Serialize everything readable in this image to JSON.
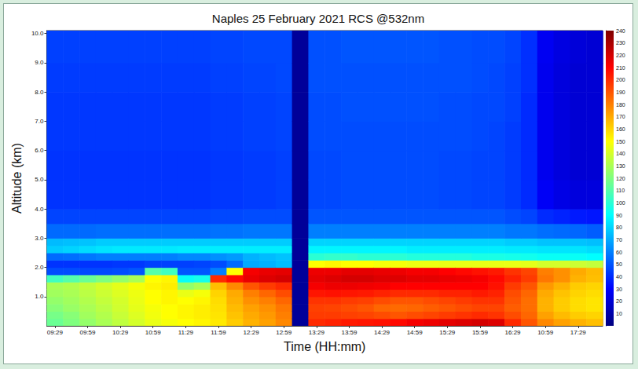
{
  "chart_data": {
    "type": "heatmap",
    "title": "Naples 25 February 2021 RCS @532nm",
    "x_label": "Time (HH:mm)",
    "y_label": "Altitude (km)",
    "x": [
      "09:29",
      null,
      "09:59",
      null,
      "10:29",
      null,
      "10:59",
      null,
      "11:29",
      null,
      "11:59",
      null,
      "12:29",
      null,
      "12:59",
      null,
      "13:29",
      null,
      "13:59",
      null,
      "14:29",
      null,
      "14:59",
      null,
      "15:29",
      null,
      "15:59",
      null,
      "16:29",
      null,
      "10:59",
      null,
      "17:29",
      null
    ],
    "ybins": [
      0,
      0.25,
      0.5,
      0.75,
      1,
      1.25,
      1.5,
      1.75,
      2,
      2.25,
      2.5,
      2.75,
      3,
      3.5,
      4,
      5,
      6,
      7,
      8,
      9,
      10.1
    ],
    "ylim": [
      0,
      10.1
    ],
    "yticks": [
      {
        "value": 1,
        "label": "1.0"
      },
      {
        "value": 2,
        "label": "2.0"
      },
      {
        "value": 3,
        "label": "3.0"
      },
      {
        "value": 4,
        "label": "4.0"
      },
      {
        "value": 5,
        "label": "5.0"
      },
      {
        "value": 6,
        "label": "6.0"
      },
      {
        "value": 7,
        "label": "7.0"
      },
      {
        "value": 8,
        "label": "8.0"
      },
      {
        "value": 9,
        "label": "9.0"
      },
      {
        "value": 10,
        "label": "10.0"
      }
    ],
    "values": [
      [
        115,
        118,
        122,
        125,
        128,
        130,
        105,
        48,
        42,
        55,
        78,
        74,
        55,
        46,
        42,
        42,
        43,
        43,
        44,
        45
      ],
      [
        120,
        122,
        126,
        128,
        130,
        132,
        110,
        48,
        42,
        56,
        80,
        75,
        55,
        46,
        42,
        42,
        43,
        43,
        44,
        45
      ],
      [
        125,
        128,
        130,
        132,
        134,
        136,
        115,
        47,
        42,
        58,
        82,
        76,
        55,
        46,
        42,
        42,
        43,
        43,
        44,
        45
      ],
      [
        130,
        132,
        134,
        136,
        138,
        140,
        120,
        47,
        42,
        60,
        84,
        78,
        56,
        46,
        42,
        42,
        43,
        43,
        44,
        45
      ],
      [
        135,
        137,
        139,
        140,
        142,
        144,
        125,
        48,
        43,
        60,
        85,
        78,
        56,
        46,
        42,
        42,
        43,
        43,
        44,
        45
      ],
      [
        140,
        142,
        144,
        145,
        146,
        148,
        130,
        50,
        43,
        60,
        85,
        78,
        56,
        46,
        42,
        42,
        43,
        43,
        44,
        45
      ],
      [
        145,
        147,
        148,
        150,
        150,
        152,
        150,
        110,
        45,
        60,
        85,
        78,
        56,
        46,
        42,
        42,
        43,
        43,
        44,
        45
      ],
      [
        148,
        150,
        150,
        152,
        152,
        154,
        152,
        105,
        45,
        60,
        85,
        78,
        56,
        46,
        42,
        42,
        43,
        43,
        44,
        45
      ],
      [
        150,
        152,
        152,
        150,
        145,
        125,
        92,
        50,
        45,
        62,
        86,
        78,
        56,
        46,
        42,
        42,
        43,
        43,
        44,
        45
      ],
      [
        152,
        154,
        154,
        152,
        148,
        130,
        95,
        50,
        46,
        62,
        86,
        78,
        56,
        46,
        42,
        42,
        43,
        43,
        44,
        45
      ],
      [
        155,
        156,
        157,
        158,
        160,
        165,
        200,
        60,
        48,
        64,
        86,
        78,
        57,
        47,
        43,
        43,
        44,
        44,
        45,
        46
      ],
      [
        162,
        164,
        166,
        168,
        170,
        178,
        208,
        150,
        55,
        66,
        86,
        78,
        57,
        47,
        43,
        43,
        44,
        44,
        45,
        46
      ],
      [
        168,
        170,
        172,
        176,
        180,
        190,
        215,
        212,
        70,
        72,
        86,
        78,
        58,
        48,
        44,
        44,
        45,
        45,
        46,
        47
      ],
      [
        172,
        174,
        176,
        180,
        186,
        196,
        218,
        215,
        72,
        74,
        86,
        78,
        58,
        48,
        44,
        44,
        45,
        45,
        46,
        47
      ],
      [
        178,
        180,
        182,
        186,
        192,
        200,
        220,
        216,
        75,
        76,
        86,
        78,
        58,
        48,
        45,
        45,
        46,
        46,
        47,
        47
      ],
      [
        6,
        6,
        6,
        6,
        6,
        6,
        6,
        6,
        6,
        6,
        6,
        6,
        6,
        6,
        6,
        6,
        6,
        6,
        6,
        6
      ],
      [
        200,
        196,
        195,
        198,
        205,
        212,
        216,
        214,
        150,
        100,
        88,
        80,
        60,
        50,
        47,
        47,
        48,
        48,
        49,
        49
      ],
      [
        202,
        196,
        194,
        198,
        206,
        214,
        218,
        214,
        152,
        102,
        88,
        80,
        60,
        50,
        47,
        47,
        48,
        48,
        49,
        49
      ],
      [
        204,
        195,
        192,
        196,
        205,
        214,
        220,
        216,
        150,
        102,
        88,
        80,
        60,
        50,
        48,
        48,
        48,
        49,
        49,
        50
      ],
      [
        205,
        194,
        190,
        195,
        204,
        213,
        220,
        216,
        150,
        100,
        88,
        80,
        60,
        50,
        48,
        48,
        48,
        49,
        49,
        50
      ],
      [
        206,
        192,
        186,
        192,
        202,
        212,
        218,
        215,
        148,
        100,
        88,
        80,
        60,
        50,
        48,
        48,
        48,
        49,
        49,
        50
      ],
      [
        208,
        190,
        185,
        190,
        200,
        210,
        218,
        214,
        148,
        100,
        88,
        80,
        60,
        50,
        48,
        48,
        48,
        49,
        49,
        50
      ],
      [
        212,
        192,
        186,
        190,
        200,
        210,
        216,
        212,
        146,
        98,
        86,
        80,
        60,
        50,
        48,
        48,
        48,
        49,
        49,
        50
      ],
      [
        214,
        194,
        188,
        192,
        200,
        210,
        216,
        212,
        146,
        98,
        86,
        80,
        60,
        50,
        48,
        48,
        48,
        49,
        49,
        50
      ],
      [
        216,
        196,
        190,
        194,
        202,
        210,
        215,
        210,
        145,
        98,
        86,
        80,
        60,
        50,
        47,
        47,
        48,
        48,
        49,
        49
      ],
      [
        218,
        198,
        192,
        196,
        202,
        210,
        214,
        208,
        145,
        98,
        86,
        80,
        60,
        50,
        47,
        47,
        48,
        48,
        49,
        49
      ],
      [
        220,
        200,
        194,
        198,
        204,
        210,
        212,
        206,
        145,
        96,
        86,
        80,
        60,
        50,
        46,
        46,
        47,
        47,
        48,
        48
      ],
      [
        218,
        198,
        194,
        198,
        202,
        206,
        208,
        204,
        145,
        96,
        86,
        80,
        60,
        50,
        46,
        46,
        46,
        47,
        47,
        48
      ],
      [
        200,
        192,
        188,
        190,
        192,
        196,
        202,
        198,
        145,
        95,
        85,
        78,
        58,
        48,
        44,
        44,
        44,
        45,
        45,
        46
      ],
      [
        190,
        186,
        184,
        184,
        186,
        190,
        196,
        194,
        144,
        94,
        85,
        78,
        58,
        46,
        40,
        40,
        40,
        40,
        41,
        41
      ],
      [
        178,
        172,
        168,
        168,
        170,
        174,
        182,
        180,
        140,
        92,
        84,
        76,
        56,
        40,
        28,
        26,
        26,
        26,
        26,
        27
      ],
      [
        172,
        166,
        162,
        162,
        164,
        168,
        176,
        176,
        140,
        92,
        84,
        76,
        55,
        38,
        24,
        22,
        22,
        22,
        22,
        23
      ],
      [
        168,
        162,
        158,
        158,
        160,
        162,
        168,
        170,
        138,
        92,
        84,
        76,
        54,
        36,
        22,
        20,
        20,
        20,
        20,
        21
      ],
      [
        165,
        160,
        156,
        156,
        158,
        160,
        165,
        166,
        136,
        90,
        82,
        75,
        52,
        35,
        22,
        20,
        20,
        20,
        20,
        20
      ]
    ],
    "colorbar": {
      "range": [
        0,
        240
      ],
      "ticks": [
        10,
        20,
        30,
        40,
        50,
        60,
        70,
        80,
        90,
        100,
        110,
        120,
        130,
        140,
        150,
        160,
        170,
        180,
        190,
        200,
        210,
        220,
        230,
        240
      ]
    }
  }
}
